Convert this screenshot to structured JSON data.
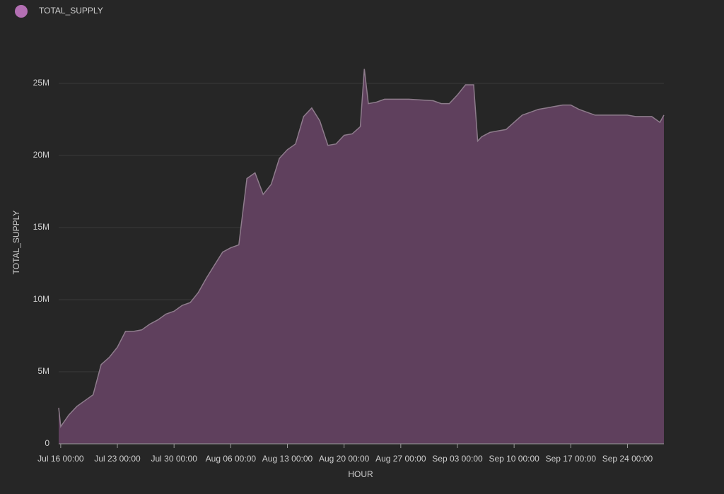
{
  "chart_data": {
    "type": "area",
    "y_label": "TOTAL_SUPPLY",
    "x_label": "HOUR",
    "series": [
      {
        "name": "TOTAL_SUPPLY",
        "color": "#b36fb3",
        "x": [
          "Jul 15 18:00",
          "Jul 16 00:00",
          "Jul 17 00:00",
          "Jul 18 00:00",
          "Jul 19 00:00",
          "Jul 20 00:00",
          "Jul 21 00:00",
          "Jul 22 00:00",
          "Jul 23 00:00",
          "Jul 24 00:00",
          "Jul 25 00:00",
          "Jul 26 00:00",
          "Jul 27 00:00",
          "Jul 28 00:00",
          "Jul 29 00:00",
          "Jul 30 00:00",
          "Jul 31 00:00",
          "Aug 01 00:00",
          "Aug 02 00:00",
          "Aug 03 00:00",
          "Aug 04 00:00",
          "Aug 05 00:00",
          "Aug 06 00:00",
          "Aug 07 00:00",
          "Aug 08 00:00",
          "Aug 09 00:00",
          "Aug 10 00:00",
          "Aug 11 00:00",
          "Aug 12 00:00",
          "Aug 13 00:00",
          "Aug 14 00:00",
          "Aug 15 00:00",
          "Aug 16 00:00",
          "Aug 17 00:00",
          "Aug 18 00:00",
          "Aug 19 00:00",
          "Aug 20 00:00",
          "Aug 21 00:00",
          "Aug 22 00:00",
          "Aug 22 12:00",
          "Aug 23 00:00",
          "Aug 24 00:00",
          "Aug 25 00:00",
          "Aug 28 00:00",
          "Aug 31 00:00",
          "Sep 01 00:00",
          "Sep 02 00:00",
          "Sep 03 00:00",
          "Sep 04 00:00",
          "Sep 05 00:00",
          "Sep 05 12:00",
          "Sep 06 00:00",
          "Sep 07 00:00",
          "Sep 08 00:00",
          "Sep 09 00:00",
          "Sep 10 00:00",
          "Sep 11 00:00",
          "Sep 12 00:00",
          "Sep 13 00:00",
          "Sep 14 00:00",
          "Sep 15 00:00",
          "Sep 16 00:00",
          "Sep 17 00:00",
          "Sep 18 00:00",
          "Sep 19 00:00",
          "Sep 20 00:00",
          "Sep 21 00:00",
          "Sep 22 00:00",
          "Sep 23 00:00",
          "Sep 24 00:00",
          "Sep 25 00:00",
          "Sep 26 00:00",
          "Sep 27 00:00",
          "Sep 28 00:00",
          "Sep 28 12:00"
        ],
        "values": [
          2500000,
          1200000,
          2000000,
          2600000,
          3000000,
          3400000,
          5500000,
          6000000,
          6700000,
          7800000,
          7800000,
          7900000,
          8300000,
          8600000,
          9000000,
          9200000,
          9600000,
          9800000,
          10500000,
          11500000,
          12400000,
          13300000,
          13600000,
          13800000,
          18400000,
          18800000,
          17300000,
          18000000,
          19800000,
          20400000,
          20800000,
          22700000,
          23300000,
          22400000,
          20700000,
          20800000,
          21400000,
          21500000,
          22000000,
          26000000,
          23600000,
          23700000,
          23900000,
          23900000,
          23800000,
          23600000,
          23600000,
          24200000,
          24900000,
          24900000,
          21000000,
          21300000,
          21600000,
          21700000,
          21800000,
          22300000,
          22800000,
          23000000,
          23200000,
          23300000,
          23400000,
          23500000,
          23500000,
          23200000,
          23000000,
          22800000,
          22800000,
          22800000,
          22800000,
          22800000,
          22700000,
          22700000,
          22700000,
          22300000,
          22800000
        ]
      }
    ],
    "xlim": [
      "Jul 15 18:00",
      "Sep 28 12:00"
    ],
    "xticks": [
      "Jul 16 00:00",
      "Jul 23 00:00",
      "Jul 30 00:00",
      "Aug 06 00:00",
      "Aug 13 00:00",
      "Aug 20 00:00",
      "Aug 27 00:00",
      "Sep 03 00:00",
      "Sep 10 00:00",
      "Sep 17 00:00",
      "Sep 24 00:00"
    ],
    "ylim": [
      0,
      25000000
    ],
    "yticks": [
      0,
      {
        "value": 5000000,
        "label": "5M"
      },
      {
        "value": 10000000,
        "label": "10M"
      },
      {
        "value": 15000000,
        "label": "15M"
      },
      {
        "value": 20000000,
        "label": "20M"
      },
      {
        "value": 25000000,
        "label": "25M"
      }
    ],
    "grid": true,
    "legend": "top-left"
  }
}
